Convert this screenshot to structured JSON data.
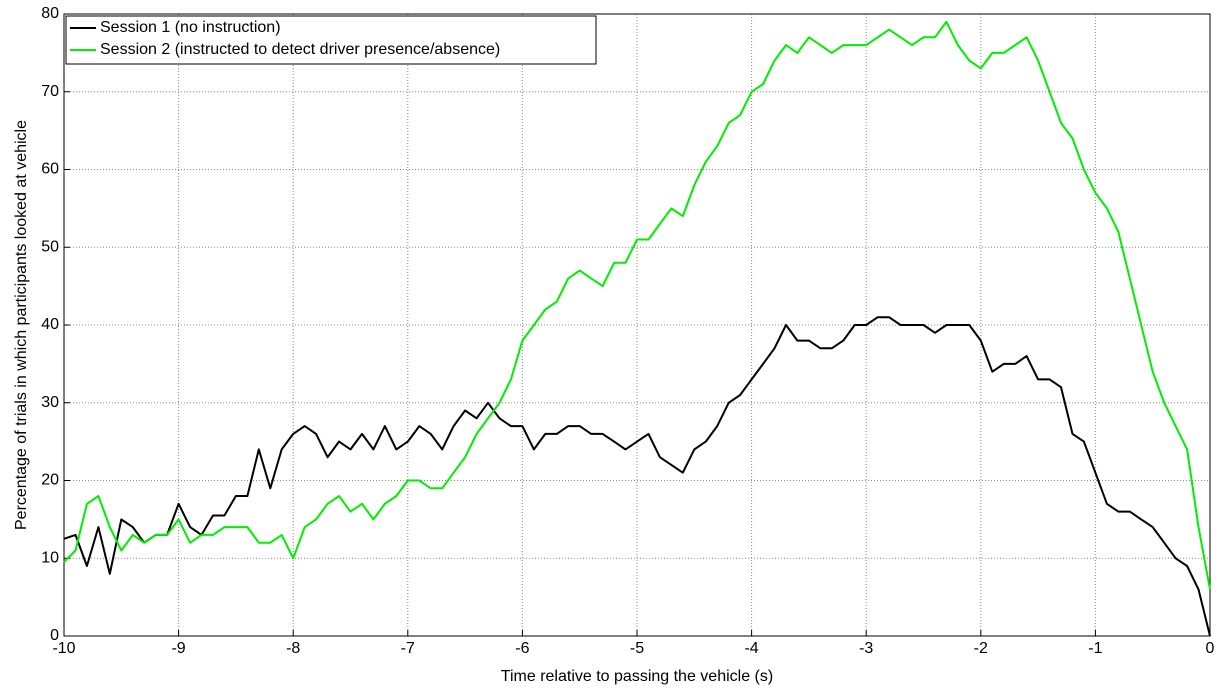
{
  "chart_data": {
    "type": "line",
    "xlabel": "Time relative to passing the vehicle (s)",
    "ylabel": "Percentage of trials in which participants looked at vehicle",
    "x": [
      -10,
      -9.9,
      -9.8,
      -9.7,
      -9.6,
      -9.5,
      -9.4,
      -9.3,
      -9.2,
      -9.1,
      -9,
      -8.9,
      -8.8,
      -8.7,
      -8.6,
      -8.5,
      -8.4,
      -8.3,
      -8.2,
      -8.1,
      -8,
      -7.9,
      -7.8,
      -7.7,
      -7.6,
      -7.5,
      -7.4,
      -7.3,
      -7.2,
      -7.1,
      -7,
      -6.9,
      -6.8,
      -6.7,
      -6.6,
      -6.5,
      -6.4,
      -6.3,
      -6.2,
      -6.1,
      -6,
      -5.9,
      -5.8,
      -5.7,
      -5.6,
      -5.5,
      -5.4,
      -5.3,
      -5.2,
      -5.1,
      -5,
      -4.9,
      -4.8,
      -4.7,
      -4.6,
      -4.5,
      -4.4,
      -4.3,
      -4.2,
      -4.1,
      -4,
      -3.9,
      -3.8,
      -3.7,
      -3.6,
      -3.5,
      -3.4,
      -3.3,
      -3.2,
      -3.1,
      -3,
      -2.9,
      -2.8,
      -2.7,
      -2.6,
      -2.5,
      -2.4,
      -2.3,
      -2.2,
      -2.1,
      -2,
      -1.9,
      -1.8,
      -1.7,
      -1.6,
      -1.5,
      -1.4,
      -1.3,
      -1.2,
      -1.1,
      -1,
      -0.9,
      -0.8,
      -0.7,
      -0.6,
      -0.5,
      -0.4,
      -0.3,
      -0.2,
      -0.1,
      0
    ],
    "series": [
      {
        "name": "Session 1 (no instruction)",
        "color": "#000000",
        "values": [
          12.5,
          13,
          9,
          14,
          8,
          15,
          14,
          12,
          13,
          13,
          17,
          14,
          13,
          15.5,
          15.5,
          18,
          18,
          24,
          19,
          24,
          26,
          27,
          26,
          23,
          25,
          24,
          26,
          24,
          27,
          24,
          25,
          27,
          26,
          24,
          27,
          29,
          28,
          30,
          28,
          27,
          27,
          24,
          26,
          26,
          27,
          27,
          26,
          26,
          25,
          24,
          25,
          26,
          23,
          22,
          21,
          24,
          25,
          27,
          30,
          31,
          33,
          35,
          37,
          40,
          38,
          38,
          37,
          37,
          38,
          40,
          40,
          41,
          41,
          40,
          40,
          40,
          39,
          40,
          40,
          40,
          38,
          34,
          35,
          35,
          36,
          33,
          33,
          32,
          26,
          25,
          21,
          17,
          16,
          16,
          15,
          14,
          12,
          10,
          9,
          6,
          0
        ]
      },
      {
        "name": "Session 2 (instructed to detect driver presence/absence)",
        "color": "#00ee00",
        "values": [
          9.5,
          11,
          17,
          18,
          14,
          11,
          13,
          12,
          13,
          13,
          15,
          12,
          13,
          13,
          14,
          14,
          14,
          12,
          12,
          13,
          10,
          14,
          15,
          17,
          18,
          16,
          17,
          15,
          17,
          18,
          20,
          20,
          19,
          19,
          21,
          23,
          26,
          28,
          30,
          33,
          38,
          40,
          42,
          43,
          46,
          47,
          46,
          45,
          48,
          48,
          51,
          51,
          53,
          55,
          54,
          58,
          61,
          63,
          66,
          67,
          70,
          71,
          74,
          76,
          75,
          77,
          76,
          75,
          76,
          76,
          76,
          77,
          78,
          77,
          76,
          77,
          77,
          79,
          76,
          74,
          73,
          75,
          75,
          76,
          77,
          74,
          70,
          66,
          64,
          60,
          57,
          55,
          52,
          46,
          40,
          34,
          30,
          27,
          24,
          14,
          6
        ]
      }
    ],
    "xlim": [
      -10,
      0
    ],
    "xticks": [
      -10,
      -9,
      -8,
      -7,
      -6,
      -5,
      -4,
      -3,
      -2,
      -1,
      0
    ],
    "ylim": [
      0,
      80
    ],
    "yticks": [
      0,
      10,
      20,
      30,
      40,
      50,
      60,
      70,
      80
    ],
    "grid": true,
    "legend": "upper left"
  }
}
